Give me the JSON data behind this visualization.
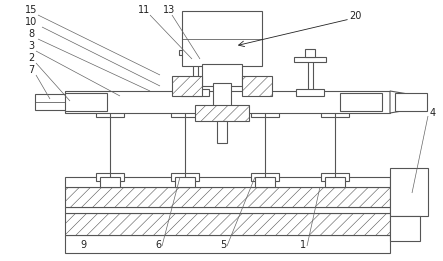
{
  "bg_color": "#ffffff",
  "lc": "#555555",
  "lw": 0.8,
  "hatch_lw": 0.4,
  "label_fs": 7.0,
  "label_color": "#222222"
}
